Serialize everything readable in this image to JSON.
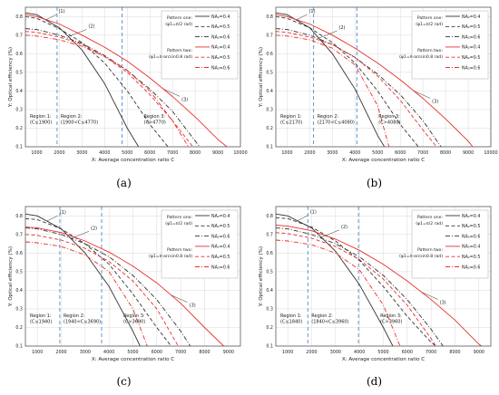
{
  "panels": [
    {
      "label": "(a)",
      "region_texts": [
        {
          "lines": [
            "Region 1:",
            "(C≤1900)"
          ]
        },
        {
          "lines": [
            "Region 2:",
            "(1900<C≤4770)"
          ]
        },
        {
          "lines": [
            "Region 3:",
            "(C>4770)"
          ]
        }
      ]
    },
    {
      "label": "(b)",
      "region_texts": [
        {
          "lines": [
            "Region 1:",
            "(C≤2170)"
          ]
        },
        {
          "lines": [
            "Region 2:",
            "(2170<C≤4080)"
          ]
        },
        {
          "lines": [
            "Region 3:",
            "(C>4080)"
          ]
        }
      ]
    },
    {
      "label": "(c)",
      "region_texts": [
        {
          "lines": [
            "Region 1:",
            "(C≤1940)"
          ]
        },
        {
          "lines": [
            "Region 2:",
            "(1940<C≤3690)"
          ]
        },
        {
          "lines": [
            "Region 3:",
            "(C>3690)"
          ]
        }
      ]
    },
    {
      "label": "(d)",
      "region_texts": [
        {
          "lines": [
            "Region 1:",
            "(C≤1840)"
          ]
        },
        {
          "lines": [
            "Region 2:",
            "(1840<C≤3960)"
          ]
        },
        {
          "lines": [
            "Region 3:",
            "(C>3960)"
          ]
        }
      ]
    }
  ],
  "legend": {
    "group_labels": [
      {
        "lines": [
          "Pattern one:",
          "(φ1=π/2 rad)"
        ]
      },
      {
        "lines": [
          "Pattern two:",
          "(φ1=π-arcsin0.8 rad)"
        ]
      }
    ],
    "entries": [
      "NA₂=0.4",
      "NA₂=0.5",
      "NA₂=0.6",
      "NA₂=0.4",
      "NA₂=0.5",
      "NA₂=0.6"
    ]
  },
  "colors": {
    "pattern_one": "#333333",
    "pattern_two": "#e8302a",
    "region_line": "#3a7fc1",
    "grid": "#d9d9d9"
  },
  "chart_data": [
    {
      "type": "line",
      "xlabel": "X: Average concentration ratio C",
      "ylabel": "Y: Optical efficiency (%)",
      "xlim": [
        500,
        10000
      ],
      "xticks": [
        1000,
        2000,
        3000,
        4000,
        5000,
        6000,
        7000,
        8000,
        9000,
        10000
      ],
      "ylim": [
        0.1,
        0.85
      ],
      "yticks": [
        0.1,
        0.2,
        0.3,
        0.4,
        0.5,
        0.6,
        0.7,
        0.8
      ],
      "grid": true,
      "region_boundaries": [
        1900,
        4770
      ],
      "curve_labels": [
        "(1)",
        "(2)",
        "(3)"
      ],
      "series": [
        {
          "name": "NA₂=0.4",
          "pattern": "Pattern one",
          "dash": "solid",
          "x": [
            500,
            1000,
            2000,
            3000,
            4000,
            5000,
            5500
          ],
          "y": [
            0.82,
            0.81,
            0.74,
            0.62,
            0.44,
            0.2,
            0.1
          ]
        },
        {
          "name": "NA₂=0.5",
          "pattern": "Pattern one",
          "dash": "dash",
          "x": [
            500,
            1000,
            2000,
            3000,
            4000,
            5000,
            6000,
            6800
          ],
          "y": [
            0.8,
            0.79,
            0.735,
            0.66,
            0.55,
            0.4,
            0.22,
            0.1
          ]
        },
        {
          "name": "NA₂=0.6",
          "pattern": "Pattern one",
          "dash": "dashdot",
          "x": [
            500,
            1000,
            2000,
            3000,
            4000,
            5000,
            6000,
            7000,
            8200
          ],
          "y": [
            0.735,
            0.73,
            0.7,
            0.655,
            0.59,
            0.51,
            0.41,
            0.29,
            0.1
          ]
        },
        {
          "name": "NA₂=0.4",
          "pattern": "Pattern two",
          "dash": "solid",
          "x": [
            500,
            1000,
            2000,
            3000,
            4000,
            5000,
            6000,
            7000,
            8000,
            9000,
            9400
          ],
          "y": [
            0.81,
            0.8,
            0.76,
            0.7,
            0.635,
            0.56,
            0.47,
            0.37,
            0.26,
            0.14,
            0.1
          ]
        },
        {
          "name": "NA₂=0.5",
          "pattern": "Pattern two",
          "dash": "dash",
          "x": [
            500,
            1000,
            2000,
            3000,
            4000,
            5000,
            6000,
            7000,
            7900
          ],
          "y": [
            0.72,
            0.715,
            0.69,
            0.65,
            0.585,
            0.5,
            0.38,
            0.24,
            0.1
          ]
        },
        {
          "name": "NA₂=0.6",
          "pattern": "Pattern two",
          "dash": "dashdot",
          "x": [
            500,
            1000,
            2000,
            3000,
            4000,
            5000,
            6000,
            7000,
            7700
          ],
          "y": [
            0.7,
            0.695,
            0.675,
            0.64,
            0.585,
            0.51,
            0.4,
            0.24,
            0.1
          ]
        }
      ]
    },
    {
      "type": "line",
      "xlabel": "X: Average concentration ratio C",
      "ylabel": "Y: Optical efficiency (%)",
      "xlim": [
        500,
        10000
      ],
      "xticks": [
        1000,
        2000,
        3000,
        4000,
        5000,
        6000,
        7000,
        8000,
        9000,
        10000
      ],
      "ylim": [
        0.1,
        0.85
      ],
      "yticks": [
        0.1,
        0.2,
        0.3,
        0.4,
        0.5,
        0.6,
        0.7,
        0.8
      ],
      "grid": true,
      "region_boundaries": [
        2170,
        4080
      ],
      "curve_labels": [
        "(1)",
        "(2)",
        "(3)"
      ],
      "series": [
        {
          "name": "NA₂=0.4",
          "pattern": "Pattern one",
          "dash": "solid",
          "x": [
            500,
            1000,
            2000,
            3000,
            4000,
            5000,
            5300
          ],
          "y": [
            0.82,
            0.81,
            0.74,
            0.6,
            0.41,
            0.16,
            0.1
          ]
        },
        {
          "name": "NA₂=0.5",
          "pattern": "Pattern one",
          "dash": "dash",
          "x": [
            500,
            1000,
            2000,
            3000,
            4000,
            5000,
            6000,
            6800
          ],
          "y": [
            0.8,
            0.79,
            0.74,
            0.66,
            0.55,
            0.4,
            0.22,
            0.1
          ]
        },
        {
          "name": "NA₂=0.6",
          "pattern": "Pattern one",
          "dash": "dashdot",
          "x": [
            500,
            1000,
            2000,
            3000,
            4000,
            5000,
            6000,
            7000,
            7800
          ],
          "y": [
            0.735,
            0.73,
            0.7,
            0.65,
            0.58,
            0.49,
            0.38,
            0.24,
            0.1
          ]
        },
        {
          "name": "NA₂=0.4",
          "pattern": "Pattern two",
          "dash": "solid",
          "x": [
            500,
            1000,
            2000,
            3000,
            4000,
            5000,
            6000,
            7000,
            8000,
            9000,
            9200
          ],
          "y": [
            0.81,
            0.8,
            0.76,
            0.7,
            0.63,
            0.55,
            0.46,
            0.36,
            0.25,
            0.13,
            0.1
          ]
        },
        {
          "name": "NA₂=0.5",
          "pattern": "Pattern two",
          "dash": "dash",
          "x": [
            500,
            1000,
            2000,
            3000,
            4000,
            5000,
            6000,
            7000,
            7600
          ],
          "y": [
            0.72,
            0.715,
            0.69,
            0.65,
            0.58,
            0.48,
            0.35,
            0.19,
            0.1
          ]
        },
        {
          "name": "NA₂=0.6",
          "pattern": "Pattern two",
          "dash": "dashdot",
          "x": [
            500,
            1000,
            2000,
            3000,
            4000,
            5000,
            5500
          ],
          "y": [
            0.7,
            0.695,
            0.675,
            0.63,
            0.54,
            0.32,
            0.1
          ]
        }
      ]
    },
    {
      "type": "line",
      "xlabel": "X: Average concentration ratio C",
      "ylabel": "Y: Optical efficiency (%)",
      "xlim": [
        500,
        9500
      ],
      "xticks": [
        1000,
        2000,
        3000,
        4000,
        5000,
        6000,
        7000,
        8000,
        9000
      ],
      "ylim": [
        0.1,
        0.85
      ],
      "yticks": [
        0.1,
        0.2,
        0.3,
        0.4,
        0.5,
        0.6,
        0.7,
        0.8
      ],
      "grid": true,
      "region_boundaries": [
        1940,
        3690
      ],
      "curve_labels": [
        "(1)",
        "(2)",
        "(3)"
      ],
      "series": [
        {
          "name": "NA₂=0.4",
          "pattern": "Pattern one",
          "dash": "solid",
          "x": [
            500,
            1000,
            2000,
            3000,
            4000,
            5000,
            5300
          ],
          "y": [
            0.81,
            0.8,
            0.73,
            0.6,
            0.42,
            0.18,
            0.1
          ]
        },
        {
          "name": "NA₂=0.5",
          "pattern": "Pattern one",
          "dash": "dash",
          "x": [
            500,
            1000,
            2000,
            3000,
            4000,
            5000,
            6000,
            6600
          ],
          "y": [
            0.785,
            0.78,
            0.73,
            0.65,
            0.54,
            0.38,
            0.2,
            0.1
          ]
        },
        {
          "name": "NA₂=0.6",
          "pattern": "Pattern one",
          "dash": "dashdot",
          "x": [
            500,
            1000,
            2000,
            3000,
            4000,
            5000,
            6000,
            7000,
            7400
          ],
          "y": [
            0.735,
            0.73,
            0.7,
            0.65,
            0.58,
            0.48,
            0.35,
            0.18,
            0.1
          ]
        },
        {
          "name": "NA₂=0.4",
          "pattern": "Pattern two",
          "dash": "solid",
          "x": [
            500,
            1000,
            2000,
            3000,
            4000,
            5000,
            6000,
            7000,
            8000,
            8800
          ],
          "y": [
            0.74,
            0.735,
            0.71,
            0.665,
            0.605,
            0.53,
            0.44,
            0.33,
            0.2,
            0.1
          ]
        },
        {
          "name": "NA₂=0.5",
          "pattern": "Pattern two",
          "dash": "dash",
          "x": [
            500,
            1000,
            2000,
            3000,
            4000,
            5000,
            6000,
            6900
          ],
          "y": [
            0.7,
            0.695,
            0.67,
            0.625,
            0.555,
            0.45,
            0.3,
            0.1
          ]
        },
        {
          "name": "NA₂=0.6",
          "pattern": "Pattern two",
          "dash": "dashdot",
          "x": [
            500,
            1000,
            2000,
            3000,
            4000,
            5000,
            5600
          ],
          "y": [
            0.66,
            0.655,
            0.635,
            0.59,
            0.5,
            0.3,
            0.1
          ]
        }
      ]
    },
    {
      "type": "line",
      "xlabel": "X: Average concentration ratio C",
      "ylabel": "Y: Optical efficiency (%)",
      "xlim": [
        500,
        9500
      ],
      "xticks": [
        1000,
        2000,
        3000,
        4000,
        5000,
        6000,
        7000,
        8000,
        9000
      ],
      "ylim": [
        0.1,
        0.85
      ],
      "yticks": [
        0.1,
        0.2,
        0.3,
        0.4,
        0.5,
        0.6,
        0.7,
        0.8
      ],
      "grid": true,
      "region_boundaries": [
        1840,
        3960
      ],
      "curve_labels": [
        "(1)",
        "(2)",
        "(3)"
      ],
      "series": [
        {
          "name": "NA₂=0.4",
          "pattern": "Pattern one",
          "dash": "solid",
          "x": [
            500,
            1000,
            2000,
            3000,
            4000,
            5000,
            5400
          ],
          "y": [
            0.81,
            0.8,
            0.735,
            0.61,
            0.43,
            0.2,
            0.1
          ]
        },
        {
          "name": "NA₂=0.5",
          "pattern": "Pattern one",
          "dash": "dash",
          "x": [
            500,
            1000,
            2000,
            3000,
            4000,
            5000,
            6000,
            7000,
            7200
          ],
          "y": [
            0.79,
            0.785,
            0.74,
            0.665,
            0.56,
            0.42,
            0.26,
            0.12,
            0.1
          ]
        },
        {
          "name": "NA₂=0.6",
          "pattern": "Pattern one",
          "dash": "dashdot",
          "x": [
            500,
            1000,
            2000,
            3000,
            4000,
            5000,
            6000,
            7000,
            7500
          ],
          "y": [
            0.735,
            0.73,
            0.7,
            0.65,
            0.58,
            0.48,
            0.35,
            0.19,
            0.1
          ]
        },
        {
          "name": "NA₂=0.4",
          "pattern": "Pattern two",
          "dash": "solid",
          "x": [
            500,
            1000,
            2000,
            3000,
            4000,
            5000,
            6000,
            7000,
            8000,
            9000,
            9100
          ],
          "y": [
            0.75,
            0.745,
            0.72,
            0.675,
            0.615,
            0.54,
            0.45,
            0.35,
            0.24,
            0.11,
            0.1
          ]
        },
        {
          "name": "NA₂=0.5",
          "pattern": "Pattern two",
          "dash": "dash",
          "x": [
            500,
            1000,
            2000,
            3000,
            4000,
            5000,
            6000,
            7000,
            7200
          ],
          "y": [
            0.71,
            0.705,
            0.68,
            0.635,
            0.565,
            0.46,
            0.32,
            0.14,
            0.1
          ]
        },
        {
          "name": "NA₂=0.6",
          "pattern": "Pattern two",
          "dash": "dashdot",
          "x": [
            500,
            1000,
            2000,
            3000,
            4000,
            5000,
            5700
          ],
          "y": [
            0.67,
            0.665,
            0.645,
            0.6,
            0.51,
            0.32,
            0.1
          ]
        }
      ]
    }
  ]
}
